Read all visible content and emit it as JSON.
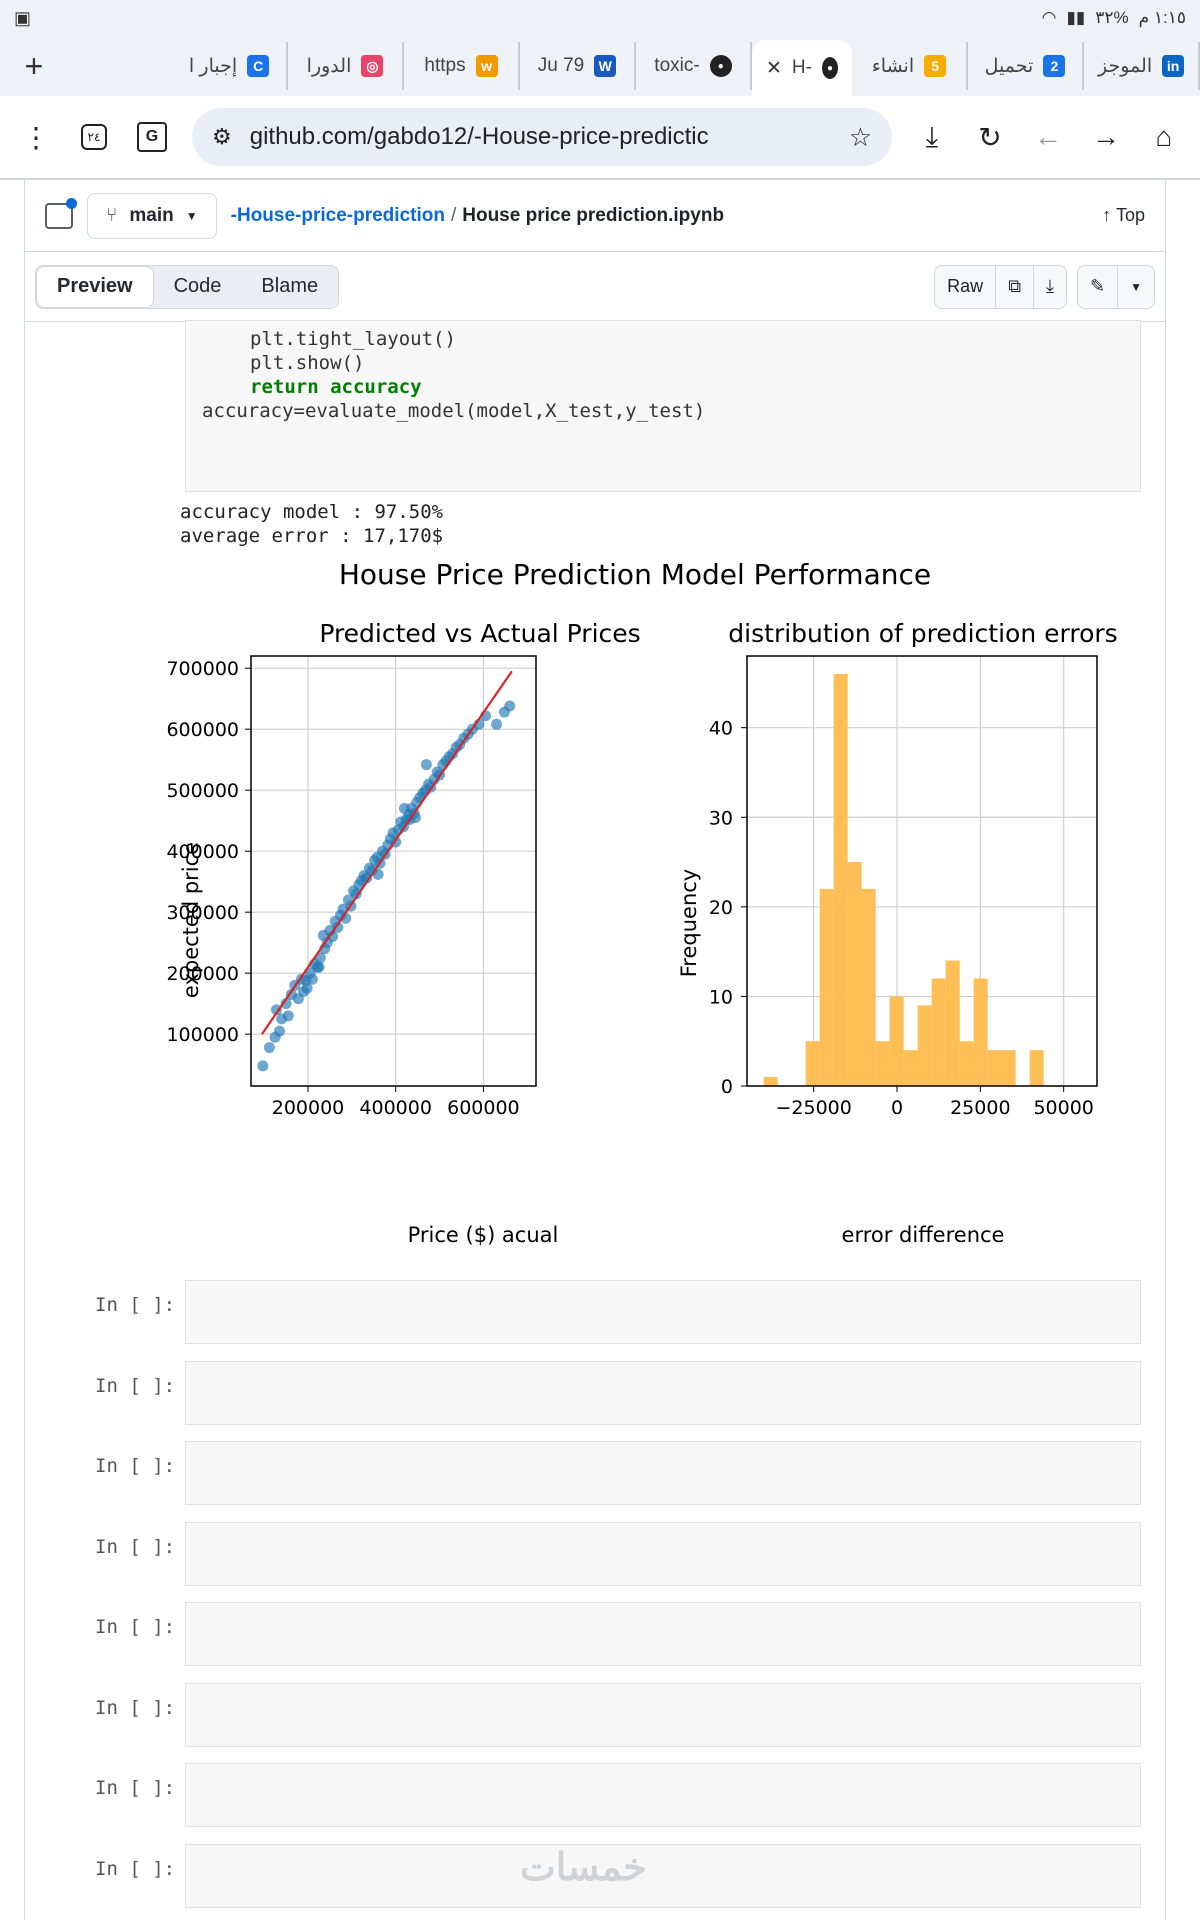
{
  "status_bar": {
    "time": "١:١٥ م",
    "battery": "%٣٢"
  },
  "tabs": [
    {
      "label": "الموجز",
      "icon": "linkedin-icon",
      "color": "#0a66c2",
      "glyph": "in"
    },
    {
      "label": "تحميل",
      "icon": "number-2-icon",
      "color": "#1a73e8",
      "glyph": "2"
    },
    {
      "label": "انشاء",
      "icon": "number-5-icon",
      "color": "#f9ab00",
      "glyph": "5"
    },
    {
      "label": "-H",
      "icon": "github-icon",
      "active": true
    },
    {
      "label": "-toxic",
      "icon": "github-icon"
    },
    {
      "label": "79 Ju",
      "icon": "word-icon",
      "color": "#185abd",
      "glyph": "W"
    },
    {
      "label": "https",
      "icon": "w-logo-icon",
      "color": "#f29900",
      "glyph": "w"
    },
    {
      "label": "الدورا",
      "icon": "target-icon",
      "color": "#e8436b",
      "glyph": "◎"
    },
    {
      "label": "إجبار ا",
      "icon": "c-icon",
      "color": "#1a73e8",
      "glyph": "C"
    }
  ],
  "address_bar": {
    "url": "github.com/gabdo12/-House-price-predictic"
  },
  "github": {
    "branch": "main",
    "repo": "-House-price-prediction",
    "file": "House price prediction.ipynb",
    "top_label": "Top",
    "tabs": [
      "Preview",
      "Code",
      "Blame"
    ],
    "raw_label": "Raw"
  },
  "notebook": {
    "code_lines": [
      "plt.tight_layout()",
      "plt.show()",
      "return accuracy",
      "accuracy=evaluate_model(model,X_test,y_test)"
    ],
    "output": [
      "accuracy model : 97.50%",
      "average error : 17,170$"
    ],
    "empty_prompt": "In [ ]:",
    "empty_cell_count": 8
  },
  "watermark": "خمسات",
  "chart_data": [
    {
      "type": "scatter",
      "suptitle": "House Price Prediction Model Performance",
      "title": "Predicted vs Actual Prices",
      "xlabel": "Price ($) acual",
      "ylabel": "expected price",
      "xlim": [
        70000,
        720000
      ],
      "ylim": [
        15000,
        720000
      ],
      "xticks": [
        200000,
        400000,
        600000
      ],
      "yticks": [
        100000,
        200000,
        300000,
        400000,
        500000,
        600000,
        700000
      ],
      "grid": true,
      "color": "#1f77b4",
      "fit_line": {
        "color": "#d62728",
        "x": [
          95000,
          665000
        ],
        "y": [
          100000,
          695000
        ]
      },
      "points": [
        [
          97000,
          48000
        ],
        [
          112000,
          78000
        ],
        [
          125000,
          95000
        ],
        [
          135000,
          105000
        ],
        [
          128000,
          140000
        ],
        [
          140000,
          125000
        ],
        [
          150000,
          150000
        ],
        [
          155000,
          130000
        ],
        [
          162000,
          165000
        ],
        [
          170000,
          180000
        ],
        [
          178000,
          158000
        ],
        [
          185000,
          190000
        ],
        [
          190000,
          170000
        ],
        [
          198000,
          175000
        ],
        [
          205000,
          200000
        ],
        [
          210000,
          190000
        ],
        [
          215000,
          215000
        ],
        [
          222000,
          210000
        ],
        [
          228000,
          225000
        ],
        [
          235000,
          262000
        ],
        [
          238000,
          240000
        ],
        [
          244000,
          250000
        ],
        [
          250000,
          270000
        ],
        [
          256000,
          260000
        ],
        [
          262000,
          285000
        ],
        [
          268000,
          275000
        ],
        [
          274000,
          295000
        ],
        [
          280000,
          305000
        ],
        [
          286000,
          290000
        ],
        [
          292000,
          320000
        ],
        [
          298000,
          310000
        ],
        [
          304000,
          335000
        ],
        [
          310000,
          330000
        ],
        [
          316000,
          345000
        ],
        [
          322000,
          352000
        ],
        [
          328000,
          360000
        ],
        [
          334000,
          356000
        ],
        [
          340000,
          372000
        ],
        [
          346000,
          368000
        ],
        [
          352000,
          385000
        ],
        [
          358000,
          390000
        ],
        [
          364000,
          380000
        ],
        [
          370000,
          400000
        ],
        [
          376000,
          395000
        ],
        [
          382000,
          410000
        ],
        [
          388000,
          420000
        ],
        [
          394000,
          430000
        ],
        [
          400000,
          415000
        ],
        [
          406000,
          435000
        ],
        [
          412000,
          448000
        ],
        [
          418000,
          440000
        ],
        [
          424000,
          452000
        ],
        [
          430000,
          460000
        ],
        [
          436000,
          470000
        ],
        [
          442000,
          462000
        ],
        [
          448000,
          480000
        ],
        [
          455000,
          488000
        ],
        [
          462000,
          495000
        ],
        [
          468000,
          500000
        ],
        [
          475000,
          510000
        ],
        [
          480000,
          505000
        ],
        [
          488000,
          518000
        ],
        [
          495000,
          530000
        ],
        [
          500000,
          525000
        ],
        [
          508000,
          542000
        ],
        [
          515000,
          548000
        ],
        [
          522000,
          555000
        ],
        [
          530000,
          560000
        ],
        [
          538000,
          570000
        ],
        [
          546000,
          575000
        ],
        [
          555000,
          585000
        ],
        [
          565000,
          592000
        ],
        [
          575000,
          600000
        ],
        [
          590000,
          608000
        ],
        [
          605000,
          622000
        ],
        [
          630000,
          608000
        ],
        [
          648000,
          628000
        ],
        [
          660000,
          638000
        ],
        [
          360000,
          362000
        ],
        [
          420000,
          470000
        ],
        [
          432000,
          452000
        ],
        [
          470000,
          542000
        ],
        [
          445000,
          455000
        ],
        [
          225000,
          210000
        ],
        [
          195000,
          188000
        ]
      ]
    },
    {
      "type": "histogram",
      "title": "distribution of prediction errors",
      "xlabel": "error difference",
      "ylabel": "Frequency",
      "xlim": [
        -45000,
        60000
      ],
      "ylim": [
        0,
        48
      ],
      "xticks": [
        -25000,
        0,
        25000,
        50000
      ],
      "yticks": [
        0,
        10,
        20,
        30,
        40
      ],
      "grid": true,
      "color": "#ffbb4d",
      "bin_width": 4200,
      "bins": [
        [
          -40000,
          1
        ],
        [
          -35800,
          0
        ],
        [
          -31600,
          0
        ],
        [
          -27400,
          5
        ],
        [
          -23200,
          22
        ],
        [
          -19000,
          46
        ],
        [
          -14800,
          25
        ],
        [
          -10600,
          22
        ],
        [
          -6400,
          5
        ],
        [
          -2200,
          10
        ],
        [
          2000,
          4
        ],
        [
          6200,
          9
        ],
        [
          10400,
          12
        ],
        [
          14600,
          14
        ],
        [
          18800,
          5
        ],
        [
          23000,
          12
        ],
        [
          27200,
          4
        ],
        [
          31400,
          4
        ],
        [
          35600,
          0
        ],
        [
          39800,
          4
        ]
      ]
    }
  ]
}
